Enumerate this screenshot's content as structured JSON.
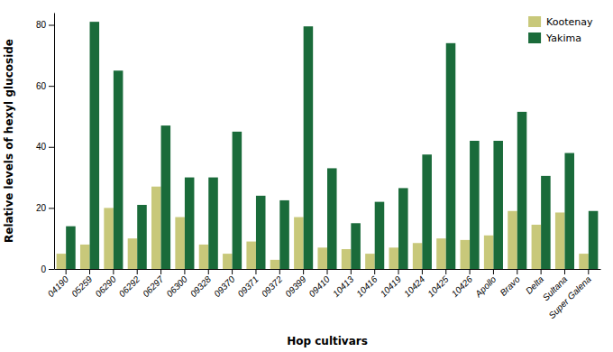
{
  "chart_data": {
    "type": "bar",
    "categories": [
      "04190",
      "05259",
      "06290",
      "06292",
      "06297",
      "06300",
      "09328",
      "09370",
      "09371",
      "09372",
      "09399",
      "09410",
      "10413",
      "10416",
      "10419",
      "10424",
      "10425",
      "10426",
      "Apollo",
      "Bravo",
      "Delta",
      "Sultana",
      "Super Galena"
    ],
    "series": [
      {
        "name": "Kootenay",
        "color": "#c8c87a",
        "values": [
          5.0,
          8.0,
          20.0,
          10.0,
          27.0,
          17.0,
          8.0,
          5.0,
          9.0,
          3.0,
          17.0,
          7.0,
          6.5,
          5.0,
          7.0,
          8.5,
          10.0,
          9.5,
          11.0,
          19.0,
          14.5,
          18.5,
          5.0
        ]
      },
      {
        "name": "Yakima",
        "color": "#1a6b3a",
        "values": [
          14.0,
          81.0,
          65.0,
          21.0,
          47.0,
          30.0,
          30.0,
          45.0,
          24.0,
          22.5,
          79.5,
          33.0,
          15.0,
          22.0,
          26.5,
          37.5,
          74.0,
          42.0,
          42.0,
          51.5,
          30.5,
          38.0,
          19.0
        ]
      }
    ],
    "xlabel": "Hop cultivars",
    "ylabel": "Relative levels of hexyl glucoside",
    "ylim": [
      0,
      84
    ],
    "yticks": [
      0,
      20,
      40,
      60,
      80
    ],
    "grid": false,
    "legend": "upper right"
  }
}
